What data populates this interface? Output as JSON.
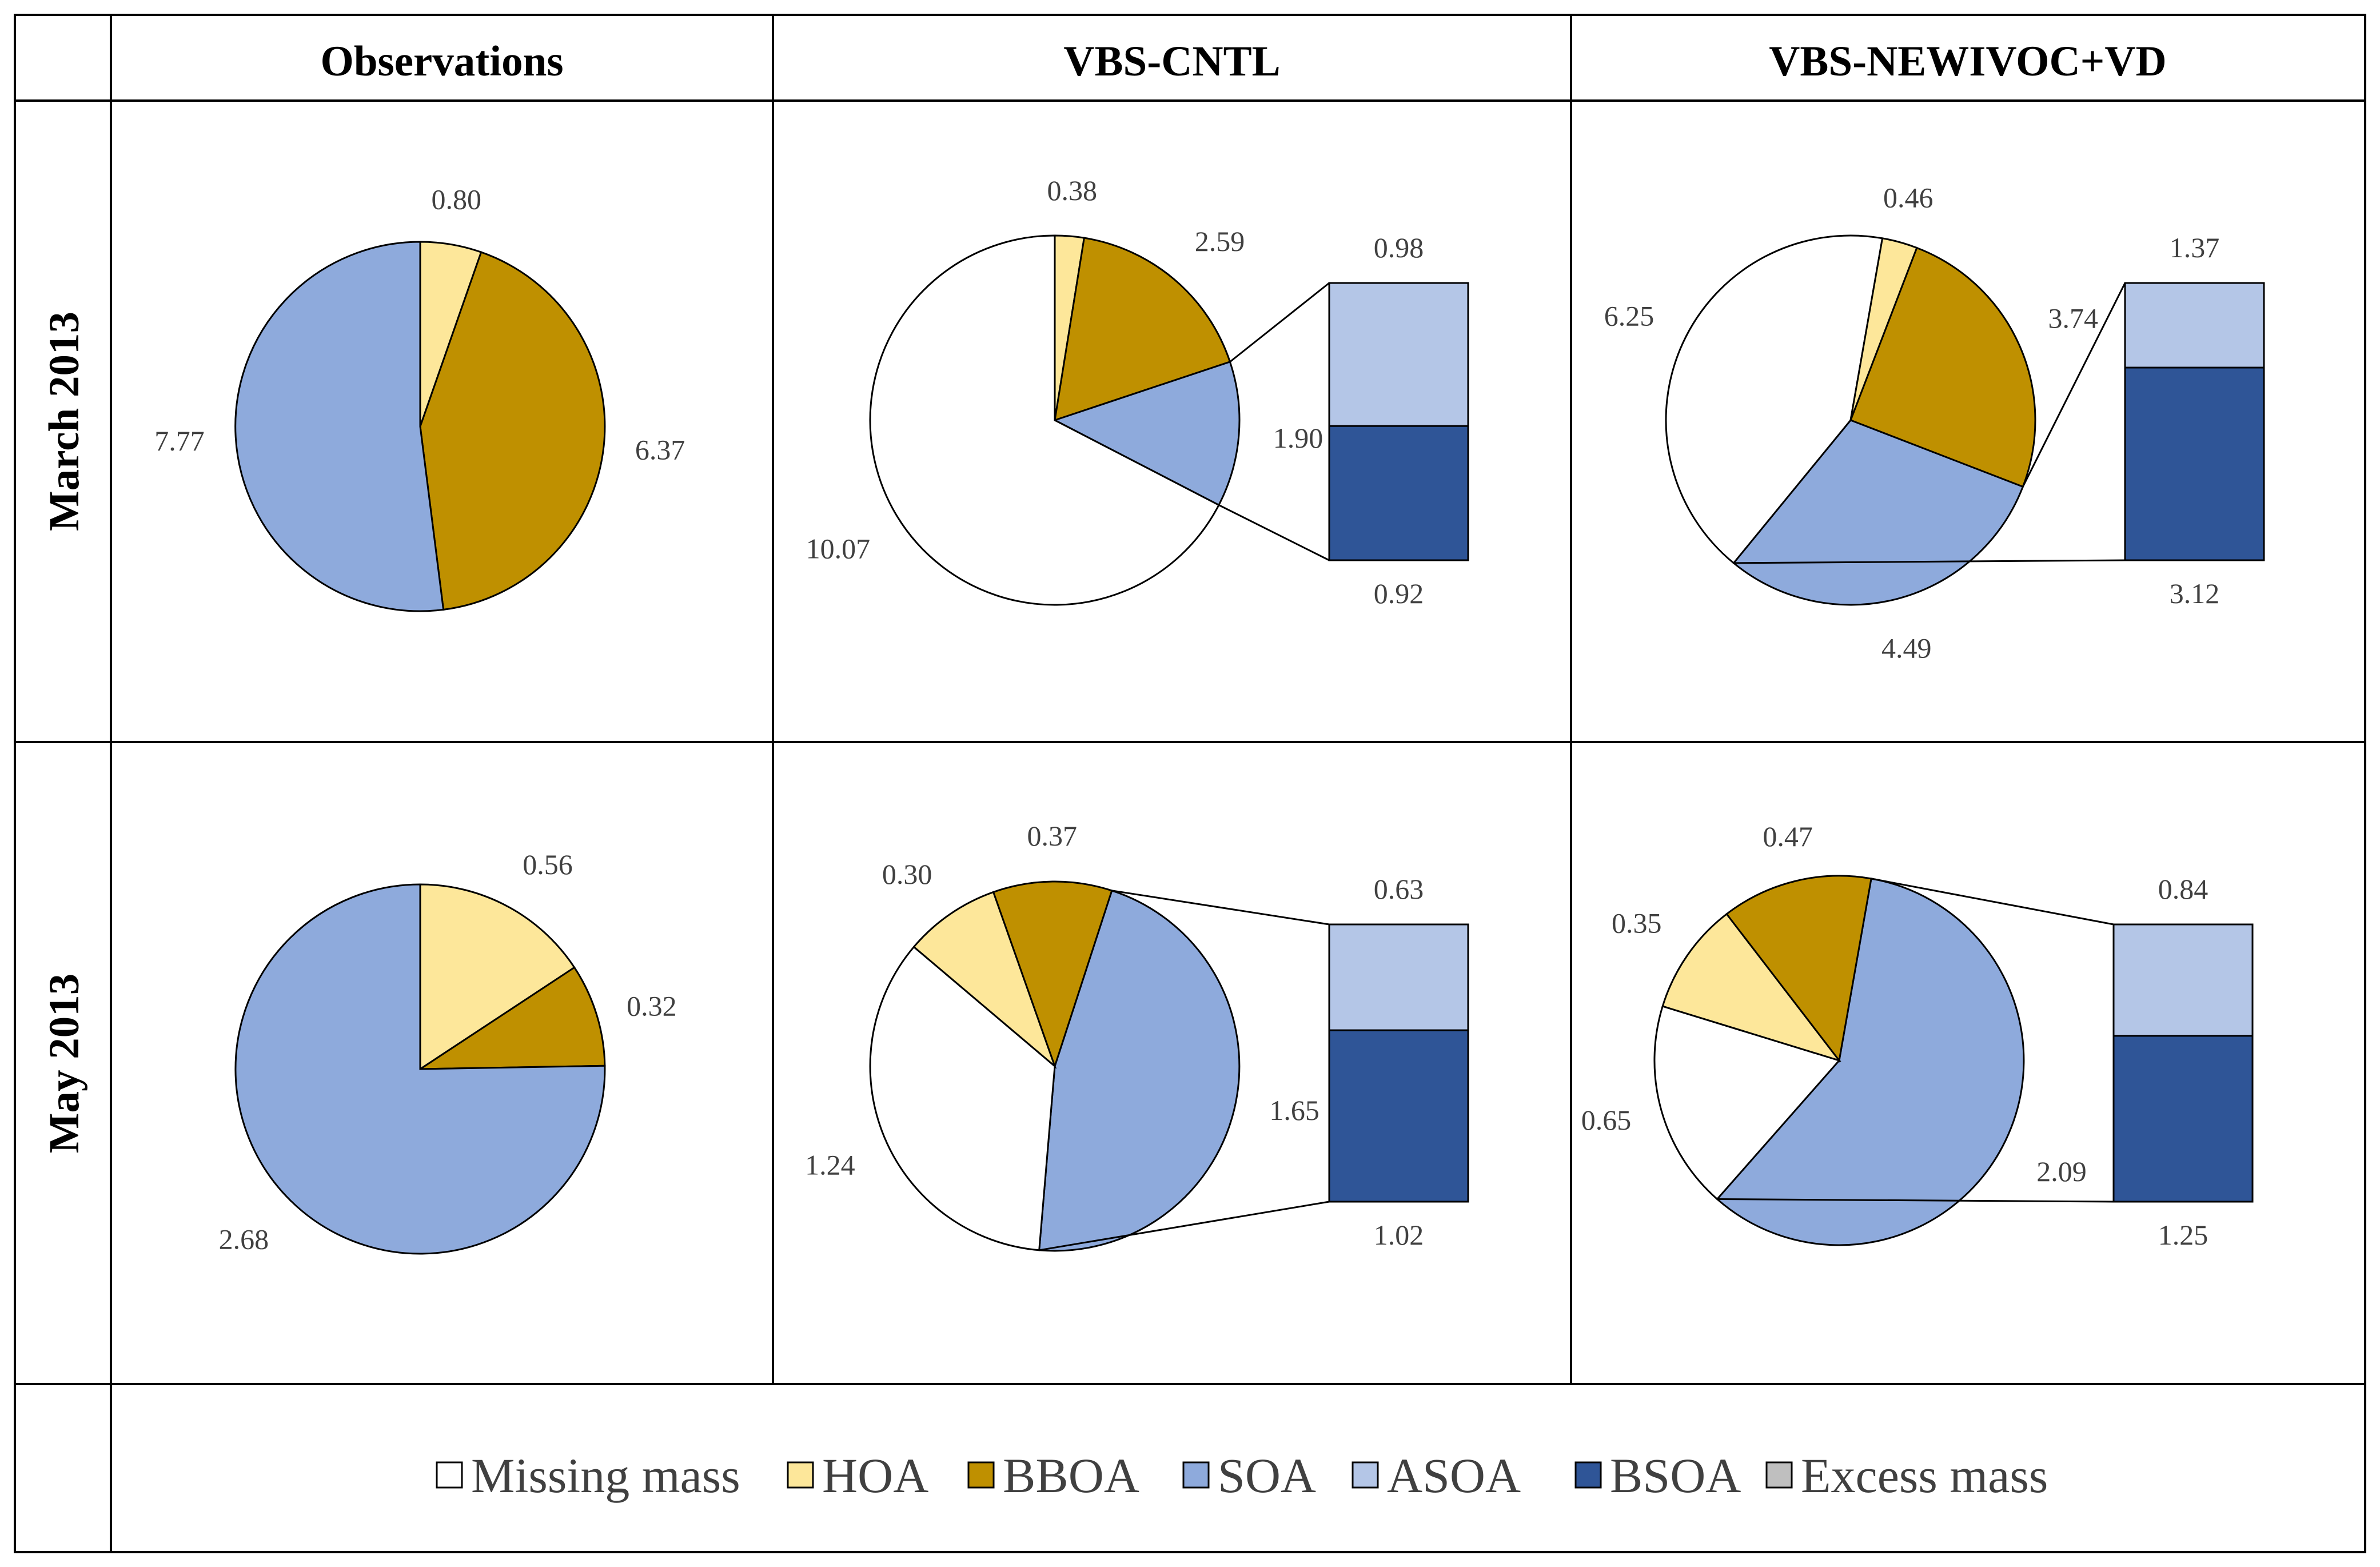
{
  "columns": [
    "Observations",
    "VBS-CNTL",
    "VBS-NEWIVOC+VD"
  ],
  "rows": [
    "March 2013",
    "May 2013"
  ],
  "legend": [
    {
      "label": "Missing mass",
      "color": "#ffffff"
    },
    {
      "label": "HOA",
      "color": "#fde79a"
    },
    {
      "label": "BBOA",
      "color": "#bf9000"
    },
    {
      "label": "SOA",
      "color": "#8eaadc"
    },
    {
      "label": "ASOA",
      "color": "#b4c6e7"
    },
    {
      "label": "BSOA",
      "color": "#2f5597"
    },
    {
      "label": "Excess mass",
      "color": "#bfbfbf"
    }
  ],
  "chart_data": [
    {
      "type": "pie",
      "row": "March 2013",
      "column": "Observations",
      "slices": [
        {
          "name": "HOA",
          "value": 0.8,
          "label": "0.80"
        },
        {
          "name": "BBOA",
          "value": 6.37,
          "label": "6.37"
        },
        {
          "name": "SOA",
          "value": 7.77,
          "label": "7.77"
        }
      ]
    },
    {
      "type": "pie",
      "row": "March 2013",
      "column": "VBS-CNTL",
      "slices": [
        {
          "name": "HOA",
          "value": 0.38,
          "label": "0.38"
        },
        {
          "name": "BBOA",
          "value": 2.59,
          "label": "2.59"
        },
        {
          "name": "SOA",
          "value": 1.9,
          "label": "1.90"
        },
        {
          "name": "Missing mass",
          "value": 10.07,
          "label": "10.07"
        }
      ],
      "breakdown": {
        "of": "SOA",
        "segments": [
          {
            "name": "ASOA",
            "value": 0.98,
            "label": "0.98"
          },
          {
            "name": "BSOA",
            "value": 0.92,
            "label": "0.92"
          }
        ]
      }
    },
    {
      "type": "pie",
      "row": "March 2013",
      "column": "VBS-NEWIVOC+VD",
      "slices": [
        {
          "name": "BBOA",
          "value": 3.74,
          "label": "3.74"
        },
        {
          "name": "SOA",
          "value": 4.49,
          "label": "4.49"
        },
        {
          "name": "Missing mass",
          "value": 6.25,
          "label": "6.25"
        },
        {
          "name": "HOA",
          "value": 0.46,
          "label": "0.46"
        }
      ],
      "breakdown": {
        "of": "SOA",
        "segments": [
          {
            "name": "ASOA",
            "value": 1.37,
            "label": "1.37"
          },
          {
            "name": "BSOA",
            "value": 3.12,
            "label": "3.12"
          }
        ]
      }
    },
    {
      "type": "pie",
      "row": "May 2013",
      "column": "Observations",
      "slices": [
        {
          "name": "HOA",
          "value": 0.56,
          "label": "0.56"
        },
        {
          "name": "BBOA",
          "value": 0.32,
          "label": "0.32"
        },
        {
          "name": "SOA",
          "value": 2.68,
          "label": "2.68"
        }
      ]
    },
    {
      "type": "pie",
      "row": "May 2013",
      "column": "VBS-CNTL",
      "slices": [
        {
          "name": "SOA",
          "value": 1.65,
          "label": "1.65"
        },
        {
          "name": "Missing mass",
          "value": 1.24,
          "label": "1.24"
        },
        {
          "name": "HOA",
          "value": 0.3,
          "label": "0.30"
        },
        {
          "name": "BBOA",
          "value": 0.37,
          "label": "0.37"
        }
      ],
      "breakdown": {
        "of": "SOA",
        "segments": [
          {
            "name": "ASOA",
            "value": 0.63,
            "label": "0.63"
          },
          {
            "name": "BSOA",
            "value": 1.02,
            "label": "1.02"
          }
        ]
      }
    },
    {
      "type": "pie",
      "row": "May 2013",
      "column": "VBS-NEWIVOC+VD",
      "slices": [
        {
          "name": "SOA",
          "value": 2.09,
          "label": "2.09"
        },
        {
          "name": "Missing mass",
          "value": 0.65,
          "label": "0.65"
        },
        {
          "name": "HOA",
          "value": 0.35,
          "label": "0.35"
        },
        {
          "name": "BBOA",
          "value": 0.47,
          "label": "0.47"
        }
      ],
      "breakdown": {
        "of": "SOA",
        "segments": [
          {
            "name": "ASOA",
            "value": 0.84,
            "label": "0.84"
          },
          {
            "name": "BSOA",
            "value": 1.25,
            "label": "1.25"
          }
        ]
      }
    }
  ]
}
